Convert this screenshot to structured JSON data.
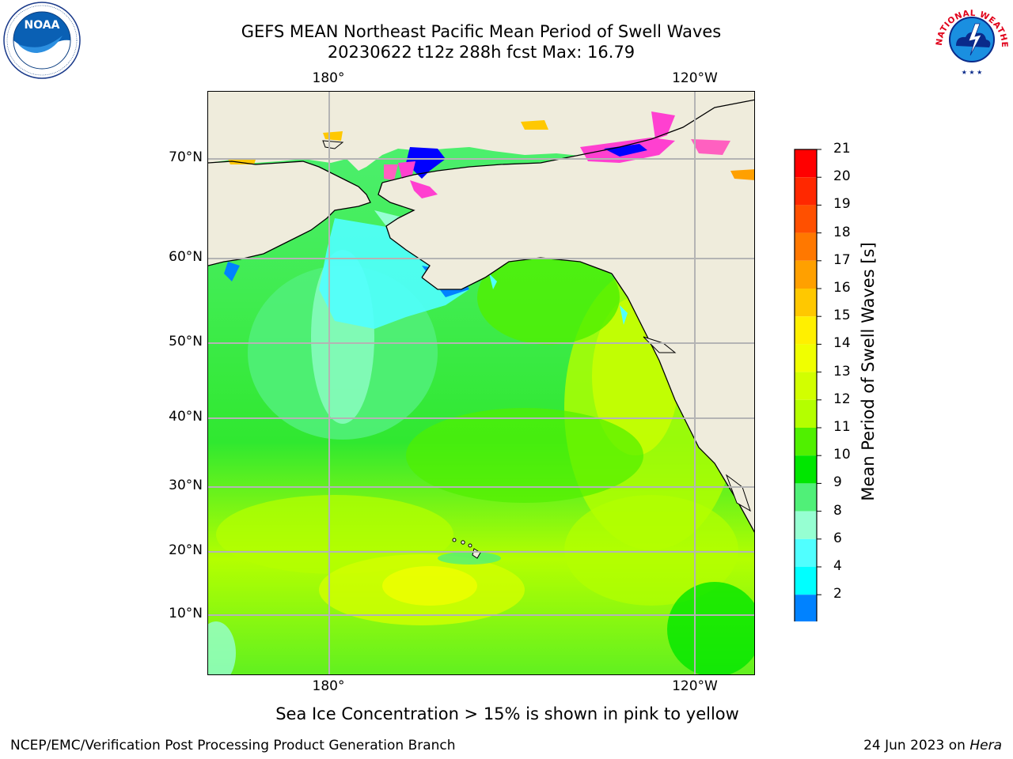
{
  "header": {
    "title_line1": "GEFS MEAN Northeast Pacific Mean Period of Swell Waves",
    "title_line2": "20230622 t12z 288h fcst   Max: 16.79"
  },
  "map": {
    "lon_labels_top": [
      "180°",
      "120°W"
    ],
    "lon_labels_bottom": [
      "180°",
      "120°W"
    ],
    "lat_labels": [
      "70°N",
      "60°N",
      "50°N",
      "40°N",
      "30°N",
      "20°N",
      "10°N"
    ],
    "land_color": "#efecdc",
    "grid_color": "#b4b4b4"
  },
  "colorbar": {
    "label": "Mean Period of Swell Waves [s]",
    "ticks": [
      "21",
      "20",
      "19",
      "18",
      "17",
      "16",
      "15",
      "14",
      "13",
      "12",
      "11",
      "10",
      "9",
      "8",
      "6",
      "4",
      "2"
    ],
    "colors_top_to_bottom": [
      "#ff0000",
      "#ff2800",
      "#ff5000",
      "#ff7800",
      "#ffa000",
      "#ffc800",
      "#fff000",
      "#f0ff00",
      "#d2ff00",
      "#b4ff00",
      "#50f000",
      "#00e600",
      "#50f078",
      "#96ffd2",
      "#50ffff",
      "#00ffff",
      "#0082ff"
    ],
    "extend_color": "#0000ff"
  },
  "logos": {
    "noaa_text": "NOAA",
    "nws_text": "NATIONAL WEATHER SERVICE"
  },
  "caption": "Sea Ice Concentration > 15% is shown in pink to yellow",
  "footer": {
    "left": "NCEP/EMC/Verification Post Processing Product Generation Branch",
    "right_prefix": "24 Jun 2023 on ",
    "right_host": "Hera"
  }
}
